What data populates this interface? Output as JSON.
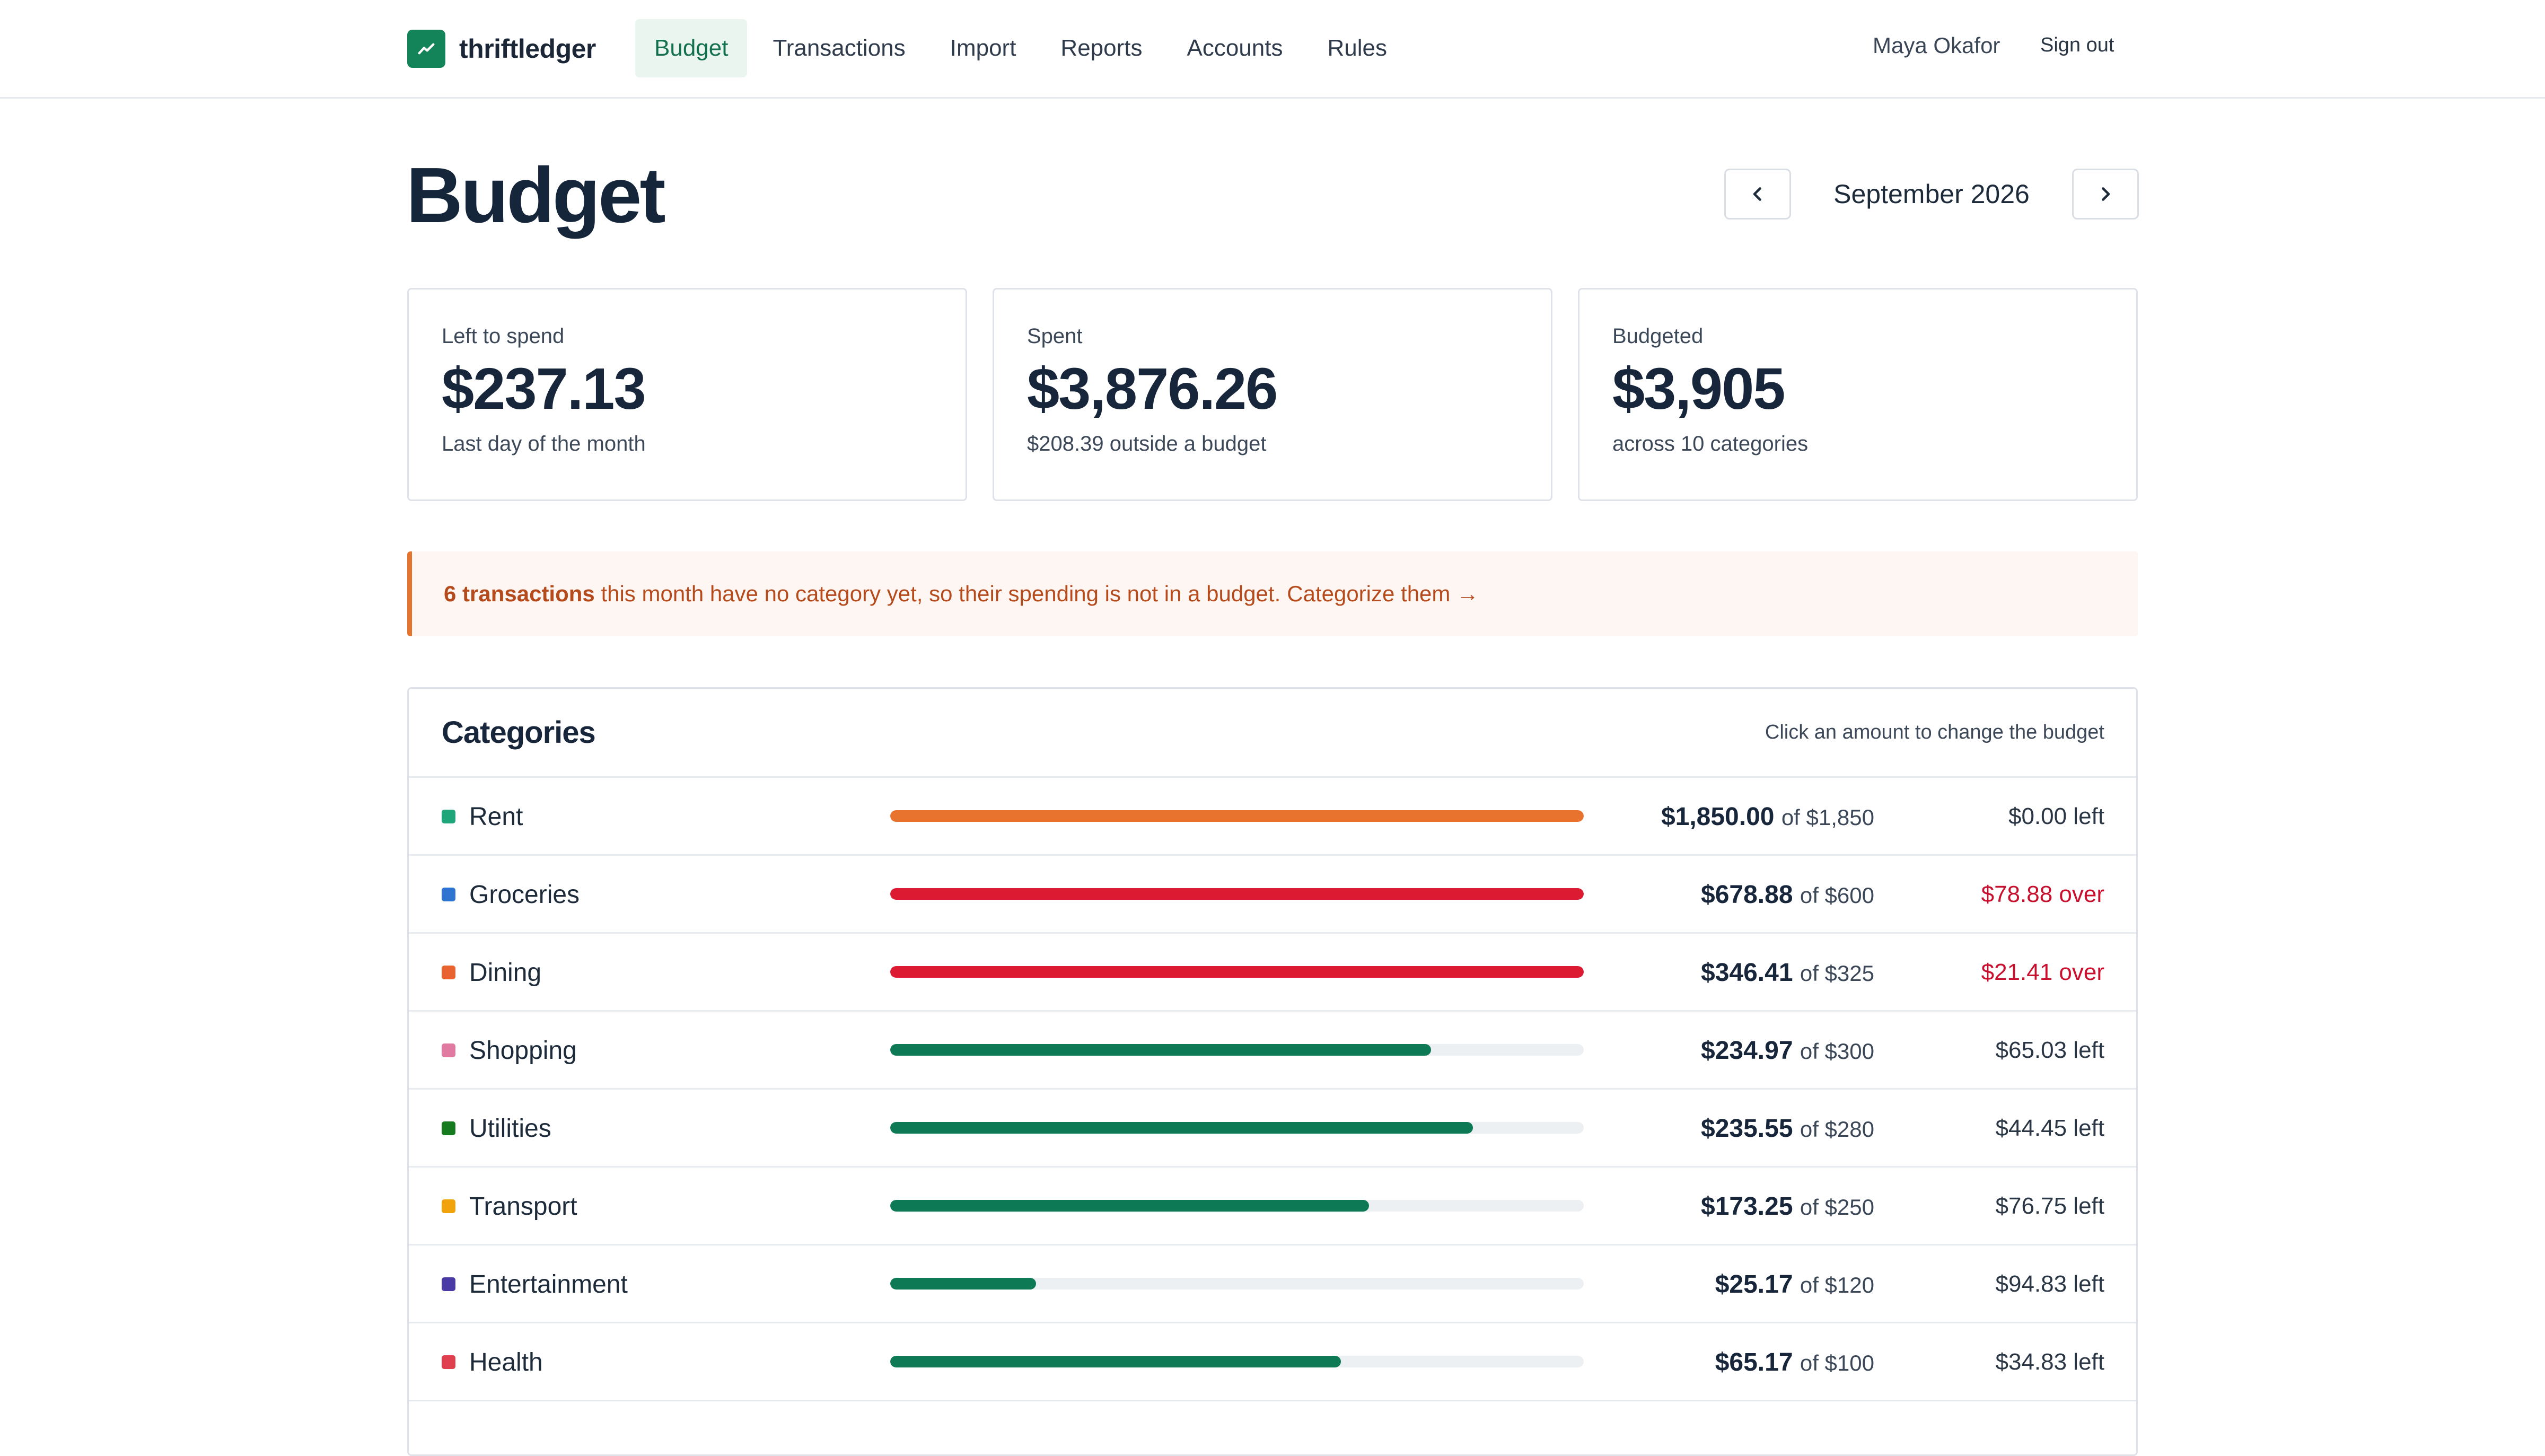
{
  "app": {
    "brand_name": "thriftledger",
    "brand_icon": "trend-up-icon",
    "brand_color": "#13835a"
  },
  "nav": {
    "items": [
      {
        "label": "Budget",
        "active": true
      },
      {
        "label": "Transactions",
        "active": false
      },
      {
        "label": "Import",
        "active": false
      },
      {
        "label": "Reports",
        "active": false
      },
      {
        "label": "Accounts",
        "active": false
      },
      {
        "label": "Rules",
        "active": false
      }
    ],
    "user_name": "Maya Okafor",
    "sign_out": "Sign out"
  },
  "header": {
    "title": "Budget",
    "month": "September 2026",
    "prev_icon": "chevron-left-icon",
    "next_icon": "chevron-right-icon"
  },
  "summary": {
    "left": {
      "label": "Left to spend",
      "value": "$237.13",
      "note": "Last day of the month"
    },
    "spent": {
      "label": "Spent",
      "value": "$3,876.26",
      "note": "$208.39 outside a budget"
    },
    "budgeted": {
      "label": "Budgeted",
      "value": "$3,905",
      "note": "across 10 categories"
    }
  },
  "alert": {
    "strong": "6 transactions",
    "text": " this month have no category yet, so their spending is not in a budget.",
    "link": "Categorize them →",
    "accent": "#e5742e"
  },
  "categories": {
    "title": "Categories",
    "hint": "Click an amount to change the budget",
    "rows": [
      {
        "name": "Rent",
        "dot": "#1fa57a",
        "fill": 1.0,
        "bar": "#e8732f",
        "spent": "$1,850.00",
        "of": "of $1,850",
        "remaining": "$0.00 left",
        "over": false
      },
      {
        "name": "Groceries",
        "dot": "#2f74d0",
        "fill": 1.0,
        "bar": "#dc1a32",
        "spent": "$678.88",
        "of": "of $600",
        "remaining": "$78.88 over",
        "over": true
      },
      {
        "name": "Dining",
        "dot": "#e8632f",
        "fill": 1.0,
        "bar": "#dc1a32",
        "spent": "$346.41",
        "of": "of $325",
        "remaining": "$21.41 over",
        "over": true
      },
      {
        "name": "Shopping",
        "dot": "#e07aa0",
        "fill": 0.78,
        "bar": "#0e7a55",
        "spent": "$234.97",
        "of": "of $300",
        "remaining": "$65.03 left",
        "over": false
      },
      {
        "name": "Utilities",
        "dot": "#167a1f",
        "fill": 0.84,
        "bar": "#0e7a55",
        "spent": "$235.55",
        "of": "of $280",
        "remaining": "$44.45 left",
        "over": false
      },
      {
        "name": "Transport",
        "dot": "#f0a30a",
        "fill": 0.69,
        "bar": "#0e7a55",
        "spent": "$173.25",
        "of": "of $250",
        "remaining": "$76.75 left",
        "over": false
      },
      {
        "name": "Entertainment",
        "dot": "#4a3aa6",
        "fill": 0.21,
        "bar": "#0e7a55",
        "spent": "$25.17",
        "of": "of $120",
        "remaining": "$94.83 left",
        "over": false
      },
      {
        "name": "Health",
        "dot": "#e0404e",
        "fill": 0.65,
        "bar": "#0e7a55",
        "spent": "$65.17",
        "of": "of $100",
        "remaining": "$34.83 left",
        "over": false
      }
    ]
  }
}
